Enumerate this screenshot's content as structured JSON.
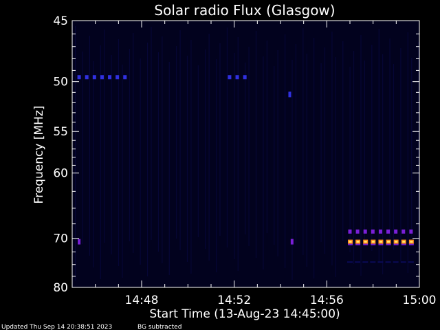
{
  "chart_data": {
    "type": "heatmap",
    "title": "Solar radio Flux (Glasgow)",
    "xlabel": "Start Time (13-Aug-23 14:45:00)",
    "ylabel": "Frequency [MHz]",
    "x_ticks": [
      "14:48",
      "14:52",
      "14:56",
      "15:00"
    ],
    "x_tick_minutes": [
      3,
      7,
      11,
      15
    ],
    "xlim_minutes": [
      0,
      15
    ],
    "y_ticks": [
      45,
      50,
      55,
      60,
      70,
      80
    ],
    "ylim": [
      45,
      80
    ],
    "y_scale": "reciprocal",
    "colors": {
      "background": "#000000",
      "plot_bg": "#02021e",
      "faint_stripe": "#0a0a55",
      "blue": "#3030e0",
      "purple": "#7a1fd8",
      "orange": "#ff8a1a",
      "yellow": "#fff070",
      "red": "#e8242a"
    },
    "features": [
      {
        "kind": "dashes",
        "freq": 49.6,
        "t_start": 0.3,
        "t_end": 2.6,
        "color": "blue"
      },
      {
        "kind": "dashes",
        "freq": 49.6,
        "t_start": 6.8,
        "t_end": 7.6,
        "color": "blue"
      },
      {
        "kind": "dot",
        "freq": 51.2,
        "t": 9.4,
        "color": "blue"
      },
      {
        "kind": "dot",
        "freq": 70.6,
        "t": 0.3,
        "color": "purple"
      },
      {
        "kind": "dot",
        "freq": 70.6,
        "t": 9.5,
        "color": "purple"
      },
      {
        "kind": "dashes",
        "freq": 68.8,
        "t_start": 12.0,
        "t_end": 15.0,
        "color": "purple"
      },
      {
        "kind": "dashes",
        "freq": 70.6,
        "t_start": 12.0,
        "t_end": 15.0,
        "color": "orange"
      },
      {
        "kind": "dashes",
        "freq": 74.5,
        "t_start": 12.0,
        "t_end": 15.0,
        "color": "faint_stripe"
      }
    ]
  },
  "footer": {
    "updated": "Updated Thu Sep 14 20:38:51 2023",
    "note": "BG subtracted"
  }
}
